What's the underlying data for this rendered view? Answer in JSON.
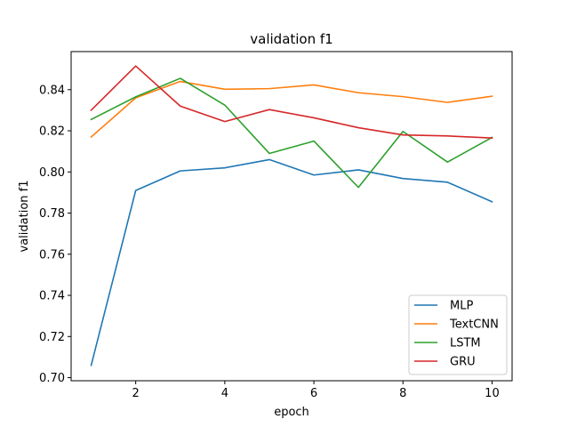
{
  "chart_data": {
    "type": "line",
    "title": "validation f1",
    "xlabel": "epoch",
    "ylabel": "validation f1",
    "x": [
      1,
      2,
      3,
      4,
      5,
      6,
      7,
      8,
      9,
      10
    ],
    "xlim": [
      0.55,
      10.45
    ],
    "ylim": [
      0.6985,
      0.8585
    ],
    "xticks": [
      2,
      4,
      6,
      8,
      10
    ],
    "xtick_labels": [
      "2",
      "4",
      "6",
      "8",
      "10"
    ],
    "yticks": [
      0.7,
      0.72,
      0.74,
      0.76,
      0.78,
      0.8,
      0.82,
      0.84
    ],
    "ytick_labels": [
      "0.70",
      "0.72",
      "0.74",
      "0.76",
      "0.78",
      "0.80",
      "0.82",
      "0.84"
    ],
    "grid": false,
    "legend_position": "lower-right",
    "series": [
      {
        "name": "MLP",
        "color": "#1f77b4",
        "values": [
          0.706,
          0.791,
          0.8005,
          0.802,
          0.806,
          0.7985,
          0.801,
          0.7968,
          0.795,
          0.7855
        ]
      },
      {
        "name": "TextCNN",
        "color": "#ff7f0e",
        "values": [
          0.817,
          0.836,
          0.844,
          0.8402,
          0.8405,
          0.8423,
          0.8385,
          0.8366,
          0.8338,
          0.8368
        ]
      },
      {
        "name": "LSTM",
        "color": "#2ca02c",
        "values": [
          0.8255,
          0.8365,
          0.8455,
          0.8325,
          0.809,
          0.815,
          0.7925,
          0.8197,
          0.8048,
          0.8168
        ]
      },
      {
        "name": "GRU",
        "color": "#d62728",
        "values": [
          0.83,
          0.8515,
          0.832,
          0.8245,
          0.8303,
          0.8263,
          0.8215,
          0.818,
          0.8175,
          0.8165
        ]
      }
    ]
  }
}
